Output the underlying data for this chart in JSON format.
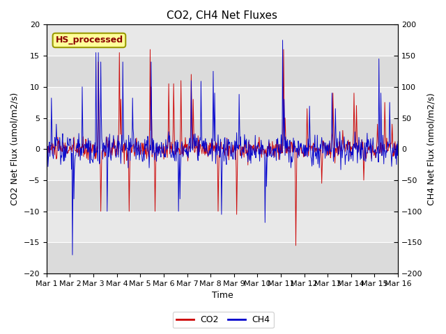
{
  "title": "CO2, CH4 Net Fluxes",
  "xlabel": "Time",
  "ylabel_left": "CO2 Net Flux (umol/m2/s)",
  "ylabel_right": "CH4 Net Flux (nmol/m2/s)",
  "ylim_left": [
    -20,
    20
  ],
  "ylim_right": [
    -200,
    200
  ],
  "yticks_left": [
    -20,
    -15,
    -10,
    -5,
    0,
    5,
    10,
    15,
    20
  ],
  "yticks_right": [
    -200,
    -150,
    -100,
    -50,
    0,
    50,
    100,
    150,
    200
  ],
  "xtick_labels": [
    "Mar 1",
    "Mar 2",
    "Mar 3",
    "Mar 4",
    "Mar 5",
    "Mar 6",
    "Mar 7",
    "Mar 8",
    "Mar 9",
    "Mar 10",
    "Mar 11",
    "Mar 12",
    "Mar 13",
    "Mar 14",
    "Mar 15",
    "Mar 16"
  ],
  "co2_color": "#cc0000",
  "ch4_color": "#0000cc",
  "plot_bg_color": "#e8e8e8",
  "fig_bg_color": "#ffffff",
  "grid_color": "#ffffff",
  "annotation_text": "HS_processed",
  "annotation_bg": "#ffff99",
  "annotation_border": "#999900",
  "annotation_text_color": "#8b0000",
  "legend_co2": "CO2",
  "legend_ch4": "CH4",
  "title_fontsize": 11,
  "axis_label_fontsize": 9,
  "tick_label_fontsize": 8,
  "annotation_fontsize": 9,
  "legend_fontsize": 9
}
